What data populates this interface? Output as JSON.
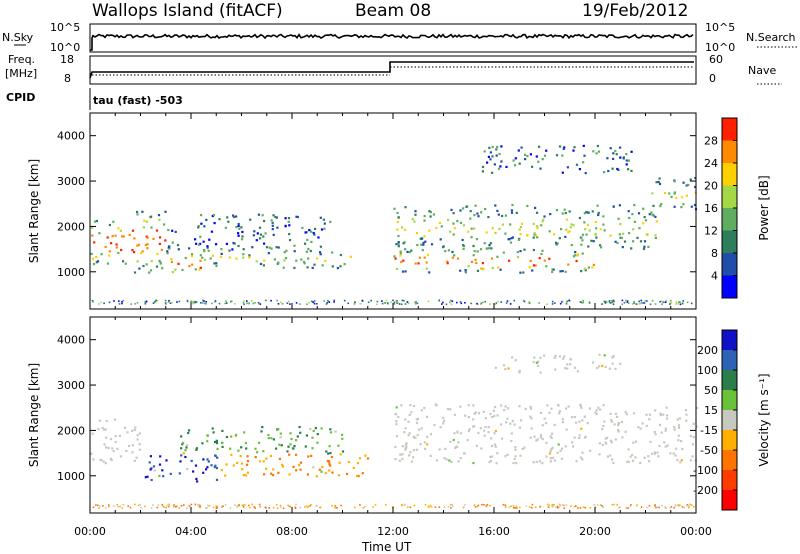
{
  "header": {
    "site": "Wallops Island (fitACF)",
    "beam": "Beam 08",
    "date": "19/Feb/2012"
  },
  "top_panels": {
    "nsky_label": "N.Sky",
    "nsearch_label": "N.Search",
    "nsky_ticks": [
      "10^5",
      "10^0"
    ],
    "nsearch_ticks": [
      "10^5",
      "10^0"
    ],
    "freq_label_1": "Freq.",
    "freq_label_2": "[MHz]",
    "freq_ticks": [
      "18",
      "8"
    ],
    "nave_label": "Nave",
    "nave_ticks": [
      "60",
      "0"
    ],
    "cpid_label": "CPID",
    "cpid_value": "tau (fast) -503"
  },
  "colors": {
    "power_scale": [
      "#0000ff",
      "#1f4fa8",
      "#2e7d5b",
      "#5fae5f",
      "#a5d846",
      "#ffd000",
      "#ff8a00",
      "#ff2000"
    ],
    "velocity_scale": [
      "#1010c8",
      "#2d62b5",
      "#2b7d4b",
      "#6ac23a",
      "#c8c8c0",
      "#ffb000",
      "#ff7300",
      "#ff3c00",
      "#ff0000"
    ]
  },
  "chart_data": [
    {
      "type": "heatmap",
      "title": "",
      "panel": "power",
      "xlabel": "Time UT",
      "ylabel": "Slant Range [km]",
      "x_ticks": [
        "00:00",
        "04:00",
        "08:00",
        "12:00",
        "16:00",
        "20:00",
        "00:00"
      ],
      "x_range_hours": [
        0,
        24
      ],
      "y_ticks": [
        "1000",
        "2000",
        "3000",
        "4000"
      ],
      "y_range_km": [
        180,
        4500
      ],
      "colorbar_label": "Power [dB]",
      "colorbar_ticks": [
        "4",
        "8",
        "12",
        "16",
        "20",
        "24",
        "28"
      ],
      "colorbar_range": [
        0,
        32
      ],
      "bands": [
        {
          "t": [
            0.0,
            1.5
          ],
          "r": [
            1150,
            2150
          ],
          "level": "high"
        },
        {
          "t": [
            1.5,
            3.0
          ],
          "r": [
            1000,
            2400
          ],
          "level": "high"
        },
        {
          "t": [
            3.0,
            4.5
          ],
          "r": [
            900,
            1500
          ],
          "level": "high"
        },
        {
          "t": [
            4.5,
            10.5
          ],
          "r": [
            1100,
            1500
          ],
          "level": "mid"
        },
        {
          "t": [
            3.0,
            9.5
          ],
          "r": [
            1500,
            2300
          ],
          "level": "low"
        },
        {
          "t": [
            12.0,
            20.0
          ],
          "r": [
            1000,
            1500
          ],
          "level": "high"
        },
        {
          "t": [
            12.0,
            22.5
          ],
          "r": [
            1500,
            2500
          ],
          "level": "mid"
        },
        {
          "t": [
            15.5,
            21.5
          ],
          "r": [
            3200,
            3800
          ],
          "level": "low"
        },
        {
          "t": [
            22.0,
            24.0
          ],
          "r": [
            2400,
            3100
          ],
          "level": "mid"
        }
      ]
    },
    {
      "type": "heatmap",
      "title": "",
      "panel": "velocity",
      "xlabel": "Time UT",
      "ylabel": "Slant Range [km]",
      "x_ticks": [
        "00:00",
        "04:00",
        "08:00",
        "12:00",
        "16:00",
        "20:00",
        "00:00"
      ],
      "x_range_hours": [
        0,
        24
      ],
      "y_ticks": [
        "1000",
        "2000",
        "3000",
        "4000"
      ],
      "y_range_km": [
        180,
        4500
      ],
      "colorbar_label": "Velocity [m s⁻¹]",
      "colorbar_ticks": [
        "200",
        "100",
        "50",
        "15",
        "-15",
        "-50",
        "-100",
        "-200"
      ],
      "bands": [
        {
          "t": [
            0.0,
            2.0
          ],
          "r": [
            1300,
            2300
          ],
          "vel": "-15..15"
        },
        {
          "t": [
            2.0,
            5.0
          ],
          "r": [
            900,
            1500
          ],
          "vel": "200"
        },
        {
          "t": [
            5.0,
            11.0
          ],
          "r": [
            1000,
            1500
          ],
          "vel": "-50"
        },
        {
          "t": [
            3.5,
            10.0
          ],
          "r": [
            1500,
            2100
          ],
          "vel": "50"
        },
        {
          "t": [
            12.0,
            24.0
          ],
          "r": [
            1300,
            2600
          ],
          "vel": "-15..15"
        },
        {
          "t": [
            16.0,
            21.0
          ],
          "r": [
            3300,
            3700
          ],
          "vel": "-15..15"
        }
      ]
    }
  ]
}
